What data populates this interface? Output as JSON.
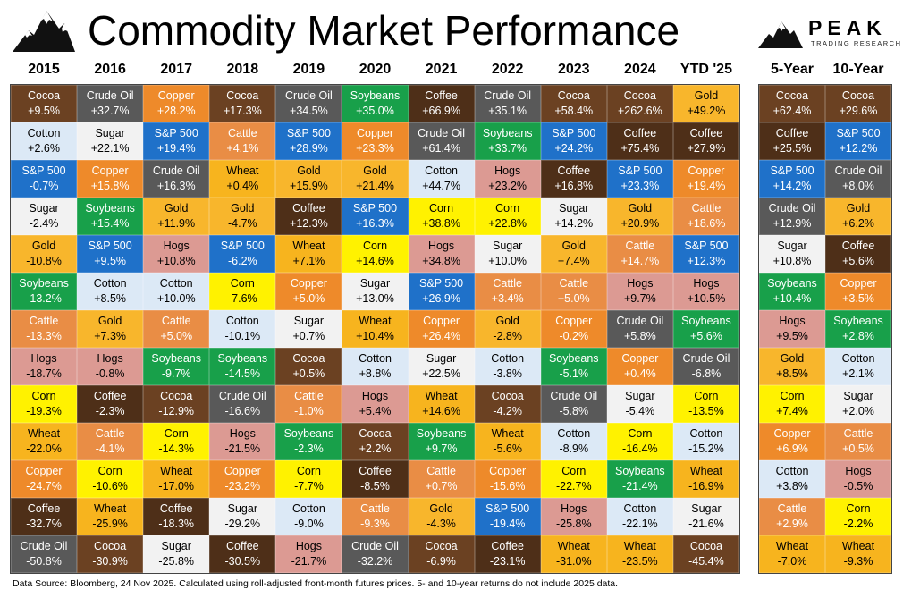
{
  "title": "Commodity Market Performance",
  "logo": {
    "name": "PEAK",
    "subtitle": "TRADING RESEARCH"
  },
  "source_note": "Data Source: Bloomberg, 24 Nov 2025. Calculated using roll-adjusted front-month futures prices. 5- and 10-year returns do not include 2025 data.",
  "commodity_colors": {
    "Cocoa": "#6b4122",
    "Crude Oil": "#595959",
    "Copper": "#ee8a2a",
    "S&P 500": "#1f71c9",
    "Soybeans": "#18a04a",
    "Coffee": "#4e2f18",
    "Gold": "#f8b62c",
    "Cotton": "#dce9f6",
    "Sugar": "#f2f2f2",
    "Cattle": "#e98d45",
    "Hogs": "#dc9a93",
    "Wheat": "#f7b41e",
    "Corn": "#fff200"
  },
  "chart_data": {
    "type": "table",
    "columns": [
      "2015",
      "2016",
      "2017",
      "2018",
      "2019",
      "2020",
      "2021",
      "2022",
      "2023",
      "2024",
      "YTD '25"
    ],
    "rows": [
      [
        [
          "Cocoa",
          "+9.5%"
        ],
        [
          "Cotton",
          "+2.6%"
        ],
        [
          "S&P 500",
          "-0.7%"
        ],
        [
          "Sugar",
          "-2.4%"
        ],
        [
          "Gold",
          "-10.8%"
        ],
        [
          "Soybeans",
          "-13.2%"
        ],
        [
          "Cattle",
          "-13.3%"
        ],
        [
          "Hogs",
          "-18.7%"
        ],
        [
          "Corn",
          "-19.3%"
        ],
        [
          "Wheat",
          "-22.0%"
        ],
        [
          "Copper",
          "-24.7%"
        ],
        [
          "Coffee",
          "-32.7%"
        ],
        [
          "Crude Oil",
          "-50.8%"
        ]
      ],
      [
        [
          "Crude Oil",
          "+32.7%"
        ],
        [
          "Sugar",
          "+22.1%"
        ],
        [
          "Copper",
          "+15.8%"
        ],
        [
          "Soybeans",
          "+15.4%"
        ],
        [
          "S&P 500",
          "+9.5%"
        ],
        [
          "Cotton",
          "+8.5%"
        ],
        [
          "Gold",
          "+7.3%"
        ],
        [
          "Hogs",
          "-0.8%"
        ],
        [
          "Coffee",
          "-2.3%"
        ],
        [
          "Cattle",
          "-4.1%"
        ],
        [
          "Corn",
          "-10.6%"
        ],
        [
          "Wheat",
          "-25.9%"
        ],
        [
          "Cocoa",
          "-30.9%"
        ]
      ],
      [
        [
          "Copper",
          "+28.2%"
        ],
        [
          "S&P 500",
          "+19.4%"
        ],
        [
          "Crude Oil",
          "+16.3%"
        ],
        [
          "Gold",
          "+11.9%"
        ],
        [
          "Hogs",
          "+10.8%"
        ],
        [
          "Cotton",
          "+10.0%"
        ],
        [
          "Cattle",
          "+5.0%"
        ],
        [
          "Soybeans",
          "-9.7%"
        ],
        [
          "Cocoa",
          "-12.9%"
        ],
        [
          "Corn",
          "-14.3%"
        ],
        [
          "Wheat",
          "-17.0%"
        ],
        [
          "Coffee",
          "-18.3%"
        ],
        [
          "Sugar",
          "-25.8%"
        ]
      ],
      [
        [
          "Cocoa",
          "+17.3%"
        ],
        [
          "Cattle",
          "+4.1%"
        ],
        [
          "Wheat",
          "+0.4%"
        ],
        [
          "Gold",
          "-4.7%"
        ],
        [
          "S&P 500",
          "-6.2%"
        ],
        [
          "Corn",
          "-7.6%"
        ],
        [
          "Cotton",
          "-10.1%"
        ],
        [
          "Soybeans",
          "-14.5%"
        ],
        [
          "Crude Oil",
          "-16.6%"
        ],
        [
          "Hogs",
          "-21.5%"
        ],
        [
          "Copper",
          "-23.2%"
        ],
        [
          "Sugar",
          "-29.2%"
        ],
        [
          "Coffee",
          "-30.5%"
        ]
      ],
      [
        [
          "Crude Oil",
          "+34.5%"
        ],
        [
          "S&P 500",
          "+28.9%"
        ],
        [
          "Gold",
          "+15.9%"
        ],
        [
          "Coffee",
          "+12.3%"
        ],
        [
          "Wheat",
          "+7.1%"
        ],
        [
          "Copper",
          "+5.0%"
        ],
        [
          "Sugar",
          "+0.7%"
        ],
        [
          "Cocoa",
          "+0.5%"
        ],
        [
          "Cattle",
          "-1.0%"
        ],
        [
          "Soybeans",
          "-2.3%"
        ],
        [
          "Corn",
          "-7.7%"
        ],
        [
          "Cotton",
          "-9.0%"
        ],
        [
          "Hogs",
          "-21.7%"
        ]
      ],
      [
        [
          "Soybeans",
          "+35.0%"
        ],
        [
          "Copper",
          "+23.3%"
        ],
        [
          "Gold",
          "+21.4%"
        ],
        [
          "S&P 500",
          "+16.3%"
        ],
        [
          "Corn",
          "+14.6%"
        ],
        [
          "Sugar",
          "+13.0%"
        ],
        [
          "Wheat",
          "+10.4%"
        ],
        [
          "Cotton",
          "+8.8%"
        ],
        [
          "Hogs",
          "+5.4%"
        ],
        [
          "Cocoa",
          "+2.2%"
        ],
        [
          "Coffee",
          "-8.5%"
        ],
        [
          "Cattle",
          "-9.3%"
        ],
        [
          "Crude Oil",
          "-32.2%"
        ]
      ],
      [
        [
          "Coffee",
          "+66.9%"
        ],
        [
          "Crude Oil",
          "+61.4%"
        ],
        [
          "Cotton",
          "+44.7%"
        ],
        [
          "Corn",
          "+38.8%"
        ],
        [
          "Hogs",
          "+34.8%"
        ],
        [
          "S&P 500",
          "+26.9%"
        ],
        [
          "Copper",
          "+26.4%"
        ],
        [
          "Sugar",
          "+22.5%"
        ],
        [
          "Wheat",
          "+14.6%"
        ],
        [
          "Soybeans",
          "+9.7%"
        ],
        [
          "Cattle",
          "+0.7%"
        ],
        [
          "Gold",
          "-4.3%"
        ],
        [
          "Cocoa",
          "-6.9%"
        ]
      ],
      [
        [
          "Crude Oil",
          "+35.1%"
        ],
        [
          "Soybeans",
          "+33.7%"
        ],
        [
          "Hogs",
          "+23.2%"
        ],
        [
          "Corn",
          "+22.8%"
        ],
        [
          "Sugar",
          "+10.0%"
        ],
        [
          "Cattle",
          "+3.4%"
        ],
        [
          "Gold",
          "-2.8%"
        ],
        [
          "Cotton",
          "-3.8%"
        ],
        [
          "Cocoa",
          "-4.2%"
        ],
        [
          "Wheat",
          "-5.6%"
        ],
        [
          "Copper",
          "-15.6%"
        ],
        [
          "S&P 500",
          "-19.4%"
        ],
        [
          "Coffee",
          "-23.1%"
        ]
      ],
      [
        [
          "Cocoa",
          "+58.4%"
        ],
        [
          "S&P 500",
          "+24.2%"
        ],
        [
          "Coffee",
          "+16.8%"
        ],
        [
          "Sugar",
          "+14.2%"
        ],
        [
          "Gold",
          "+7.4%"
        ],
        [
          "Cattle",
          "+5.0%"
        ],
        [
          "Copper",
          "-0.2%"
        ],
        [
          "Soybeans",
          "-5.1%"
        ],
        [
          "Crude Oil",
          "-5.8%"
        ],
        [
          "Cotton",
          "-8.9%"
        ],
        [
          "Corn",
          "-22.7%"
        ],
        [
          "Hogs",
          "-25.8%"
        ],
        [
          "Wheat",
          "-31.0%"
        ]
      ],
      [
        [
          "Cocoa",
          "+262.6%"
        ],
        [
          "Coffee",
          "+75.4%"
        ],
        [
          "S&P 500",
          "+23.3%"
        ],
        [
          "Gold",
          "+20.9%"
        ],
        [
          "Cattle",
          "+14.7%"
        ],
        [
          "Hogs",
          "+9.7%"
        ],
        [
          "Crude Oil",
          "+5.8%"
        ],
        [
          "Copper",
          "+0.4%"
        ],
        [
          "Sugar",
          "-5.4%"
        ],
        [
          "Corn",
          "-16.4%"
        ],
        [
          "Soybeans",
          "-21.4%"
        ],
        [
          "Cotton",
          "-22.1%"
        ],
        [
          "Wheat",
          "-23.5%"
        ]
      ],
      [
        [
          "Gold",
          "+49.2%"
        ],
        [
          "Coffee",
          "+27.9%"
        ],
        [
          "Copper",
          "+19.4%"
        ],
        [
          "Cattle",
          "+18.6%"
        ],
        [
          "S&P 500",
          "+12.3%"
        ],
        [
          "Hogs",
          "+10.5%"
        ],
        [
          "Soybeans",
          "+5.6%"
        ],
        [
          "Crude Oil",
          "-6.8%"
        ],
        [
          "Corn",
          "-13.5%"
        ],
        [
          "Cotton",
          "-15.2%"
        ],
        [
          "Wheat",
          "-16.9%"
        ],
        [
          "Sugar",
          "-21.6%"
        ],
        [
          "Cocoa",
          "-45.4%"
        ]
      ]
    ],
    "side_columns": [
      "5-Year",
      "10-Year"
    ],
    "side_rows": [
      [
        [
          "Cocoa",
          "+62.4%"
        ],
        [
          "Coffee",
          "+25.5%"
        ],
        [
          "S&P 500",
          "+14.2%"
        ],
        [
          "Crude Oil",
          "+12.9%"
        ],
        [
          "Sugar",
          "+10.8%"
        ],
        [
          "Soybeans",
          "+10.4%"
        ],
        [
          "Hogs",
          "+9.5%"
        ],
        [
          "Gold",
          "+8.5%"
        ],
        [
          "Corn",
          "+7.4%"
        ],
        [
          "Copper",
          "+6.9%"
        ],
        [
          "Cotton",
          "+3.8%"
        ],
        [
          "Cattle",
          "+2.9%"
        ],
        [
          "Wheat",
          "-7.0%"
        ]
      ],
      [
        [
          "Cocoa",
          "+29.6%"
        ],
        [
          "S&P 500",
          "+12.2%"
        ],
        [
          "Crude Oil",
          "+8.0%"
        ],
        [
          "Gold",
          "+6.2%"
        ],
        [
          "Coffee",
          "+5.6%"
        ],
        [
          "Copper",
          "+3.5%"
        ],
        [
          "Soybeans",
          "+2.8%"
        ],
        [
          "Cotton",
          "+2.1%"
        ],
        [
          "Sugar",
          "+2.0%"
        ],
        [
          "Cattle",
          "+0.5%"
        ],
        [
          "Hogs",
          "-0.5%"
        ],
        [
          "Corn",
          "-2.2%"
        ],
        [
          "Wheat",
          "-9.3%"
        ]
      ]
    ]
  }
}
